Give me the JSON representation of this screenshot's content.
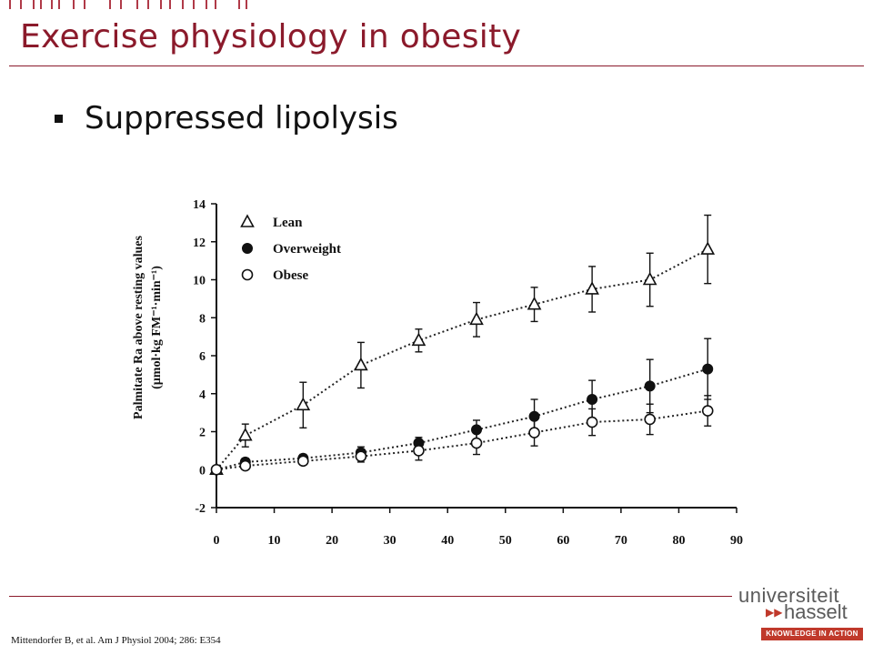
{
  "slide": {
    "title": "Exercise physiology in obesity",
    "bullet": "Suppressed lipolysis",
    "citation": "Mittendorfer B, et al. Am J Physiol 2004; 286: E354"
  },
  "logo": {
    "line1": "universiteit",
    "line2": "hasselt",
    "tagline": "KNOWLEDGE IN ACTION",
    "accent": "#c0392b"
  },
  "colors": {
    "title": "#8b1a2b",
    "rule": "#8b1a2b"
  },
  "chart_data": {
    "type": "line",
    "title": "",
    "xlabel": "",
    "ylabel_line1": "Palmitate Ra above resting values",
    "ylabel_line2": "(µmol·kg FM⁻¹·min⁻¹)",
    "xlim": [
      0,
      90
    ],
    "ylim": [
      -2,
      14
    ],
    "x_ticks": [
      0,
      10,
      20,
      30,
      40,
      50,
      60,
      70,
      80,
      90
    ],
    "y_ticks": [
      -2,
      0,
      2,
      4,
      6,
      8,
      10,
      12,
      14
    ],
    "legend_position": "top-left",
    "grid": false,
    "series": [
      {
        "name": "Lean",
        "marker": "open-triangle",
        "x": [
          0,
          5,
          15,
          25,
          35,
          45,
          55,
          65,
          75,
          85
        ],
        "y": [
          0,
          1.8,
          3.4,
          5.5,
          6.8,
          7.9,
          8.7,
          9.5,
          10.0,
          11.6
        ],
        "err": [
          0,
          0.6,
          1.2,
          1.2,
          0.6,
          0.9,
          0.9,
          1.2,
          1.4,
          1.8
        ]
      },
      {
        "name": "Overweight",
        "marker": "filled-circle",
        "x": [
          0,
          5,
          15,
          25,
          35,
          45,
          55,
          65,
          75,
          85
        ],
        "y": [
          0,
          0.4,
          0.6,
          0.9,
          1.4,
          2.1,
          2.8,
          3.7,
          4.4,
          5.3
        ],
        "err": [
          0,
          0.2,
          0.2,
          0.3,
          0.3,
          0.5,
          0.9,
          1.0,
          1.4,
          1.6
        ]
      },
      {
        "name": "Obese",
        "marker": "open-circle",
        "x": [
          0,
          5,
          15,
          25,
          35,
          45,
          55,
          65,
          75,
          85
        ],
        "y": [
          0,
          0.2,
          0.45,
          0.7,
          1.0,
          1.4,
          1.95,
          2.5,
          2.65,
          3.1
        ],
        "err": [
          0,
          0.2,
          0.2,
          0.3,
          0.5,
          0.6,
          0.7,
          0.7,
          0.8,
          0.8
        ]
      }
    ]
  }
}
